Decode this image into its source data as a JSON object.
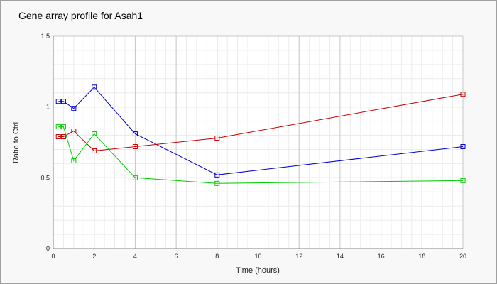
{
  "chart_data": {
    "type": "line",
    "title": "Gene array profile for Asah1",
    "xlabel": "Time (hours)",
    "ylabel": "Ratio to Ctrl",
    "xlim": [
      0,
      20
    ],
    "ylim": [
      0,
      1.5
    ],
    "xticks": [
      0,
      2,
      4,
      6,
      8,
      10,
      12,
      14,
      16,
      18,
      20
    ],
    "yticks": [
      0,
      0.5,
      1,
      1.5
    ],
    "xtick_labels": [
      "0",
      "2",
      "4",
      "6",
      "8",
      "10",
      "12",
      "14",
      "16",
      "18",
      "20"
    ],
    "ytick_labels": [
      "0",
      "0.5",
      "1",
      "1.5"
    ],
    "grid": true,
    "legend": "none",
    "series": [
      {
        "color": "#0000cc",
        "x": [
          0.25,
          0.5,
          1,
          2,
          4,
          8,
          20
        ],
        "y": [
          1.04,
          1.04,
          0.99,
          1.14,
          0.81,
          0.52,
          0.72
        ]
      },
      {
        "color": "#cc0000",
        "x": [
          0.25,
          0.5,
          1,
          2,
          4,
          8,
          20
        ],
        "y": [
          0.79,
          0.79,
          0.83,
          0.69,
          0.72,
          0.78,
          1.09
        ]
      },
      {
        "color": "#00cc00",
        "x": [
          0.25,
          0.5,
          1,
          2,
          4,
          8,
          20
        ],
        "y": [
          0.86,
          0.86,
          0.62,
          0.81,
          0.5,
          0.46,
          0.48
        ]
      }
    ]
  }
}
